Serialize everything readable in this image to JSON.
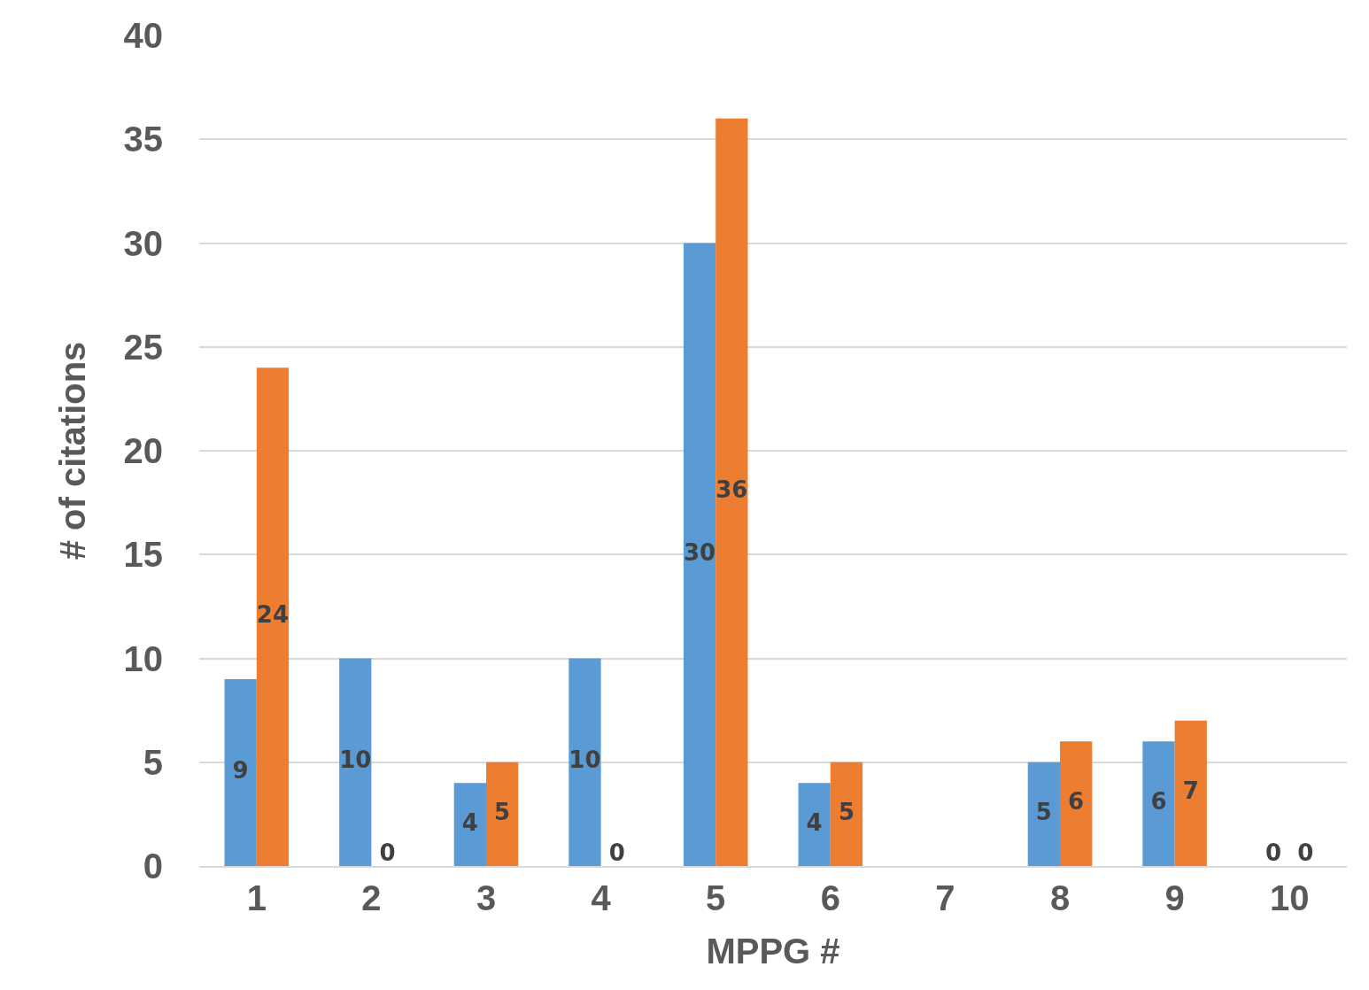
{
  "chart_data": {
    "type": "bar",
    "xlabel": "MPPG #",
    "ylabel": "# of citations",
    "categories": [
      "1",
      "2",
      "3",
      "4",
      "5",
      "6",
      "7",
      "8",
      "9",
      "10"
    ],
    "series": [
      {
        "color": "#5b9bd5",
        "values": [
          9,
          10,
          4,
          10,
          30,
          4,
          null,
          5,
          6,
          0
        ]
      },
      {
        "color": "#ed7d31",
        "values": [
          24,
          0,
          5,
          0,
          36,
          5,
          null,
          6,
          7,
          0
        ]
      }
    ],
    "ylim": [
      0,
      40
    ],
    "yticks": [
      0,
      5,
      10,
      15,
      20,
      25,
      30,
      35,
      40
    ],
    "grid": "y",
    "data_labels": true
  }
}
